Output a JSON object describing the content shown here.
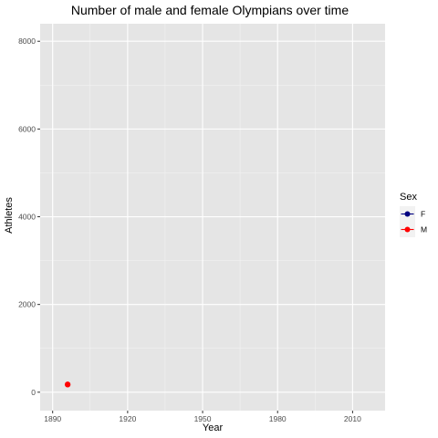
{
  "chart_data": {
    "type": "scatter",
    "title": "Number of male and female Olympians over time",
    "xlabel": "Year",
    "ylabel": "Athletes",
    "xlim": [
      1885,
      2023
    ],
    "ylim": [
      -420,
      8400
    ],
    "x_ticks": [
      1890,
      1920,
      1950,
      1980,
      2010
    ],
    "y_ticks": [
      0,
      2000,
      4000,
      6000,
      8000
    ],
    "x_tick_labels": [
      "1890",
      "1920",
      "1950",
      "1980",
      "2010"
    ],
    "y_tick_labels": [
      "0",
      "2000",
      "4000",
      "6000",
      "8000"
    ],
    "grid": true,
    "legend": {
      "title": "Sex",
      "position": "right",
      "entries": [
        {
          "label": "F",
          "color": "#000080"
        },
        {
          "label": "M",
          "color": "#ff0000"
        }
      ]
    },
    "series": [
      {
        "name": "F",
        "color": "#000080",
        "points": []
      },
      {
        "name": "M",
        "color": "#ff0000",
        "points": [
          {
            "x": 1896,
            "y": 176
          }
        ]
      }
    ]
  }
}
